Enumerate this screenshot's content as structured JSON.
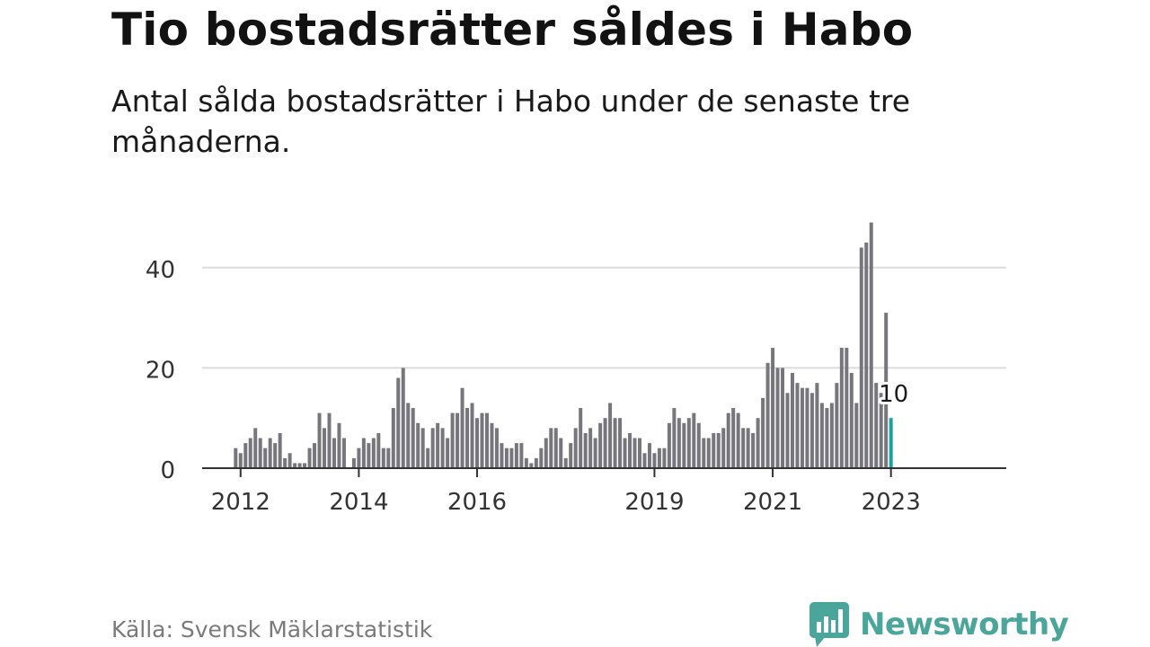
{
  "header": {
    "title": "Tio bostadsrätter såldes i Habo",
    "subtitle": "Antal sålda bostadsrätter i Habo under de senaste tre månaderna."
  },
  "footer": {
    "source": "Källa: Svensk Mäklarstatistik",
    "brand": "Newsworthy",
    "brand_icon": "newsworthy-logo-icon"
  },
  "colors": {
    "bar": "#77767c",
    "highlight": "#1aa39b",
    "grid": "#dcdcdc",
    "axis": "#333333",
    "brand": "#4aa59a"
  },
  "chart_data": {
    "type": "bar",
    "title": "Tio bostadsrätter såldes i Habo",
    "xlabel": "",
    "ylabel": "",
    "ylim": [
      0,
      50
    ],
    "yticks": [
      0,
      20,
      40
    ],
    "grid": true,
    "start": "2011-12",
    "xtick_labels": [
      "2012",
      "2014",
      "2016",
      "2019",
      "2021",
      "2023"
    ],
    "xtick_months": [
      "2012-01",
      "2014-01",
      "2016-01",
      "2019-01",
      "2021-01",
      "2023-01"
    ],
    "values": [
      4,
      3,
      5,
      6,
      8,
      6,
      4,
      6,
      5,
      7,
      2,
      3,
      1,
      1,
      1,
      4,
      5,
      11,
      8,
      11,
      6,
      9,
      6,
      0,
      2,
      4,
      6,
      5,
      6,
      7,
      4,
      4,
      12,
      18,
      20,
      13,
      12,
      9,
      8,
      4,
      8,
      9,
      8,
      6,
      11,
      11,
      16,
      12,
      13,
      10,
      11,
      11,
      9,
      8,
      5,
      4,
      4,
      5,
      5,
      2,
      1,
      2,
      4,
      6,
      8,
      8,
      6,
      2,
      5,
      8,
      12,
      7,
      8,
      6,
      9,
      10,
      13,
      10,
      10,
      6,
      7,
      6,
      6,
      3,
      5,
      3,
      4,
      4,
      9,
      12,
      10,
      9,
      10,
      11,
      9,
      6,
      6,
      7,
      7,
      8,
      11,
      12,
      11,
      8,
      8,
      7,
      10,
      14,
      21,
      24,
      20,
      20,
      15,
      19,
      17,
      16,
      16,
      15,
      17,
      13,
      12,
      13,
      17,
      24,
      24,
      19,
      13,
      44,
      45,
      49,
      17,
      15,
      31,
      10
    ],
    "highlight_last": true,
    "annotation": "10"
  }
}
